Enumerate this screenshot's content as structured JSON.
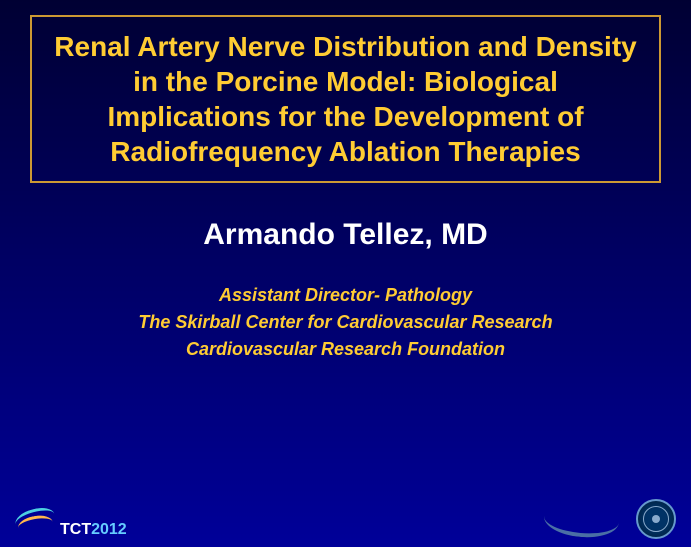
{
  "slide": {
    "title": "Renal Artery Nerve Distribution and Density in the Porcine Model: Biological Implications for the Development of Radiofrequency Ablation Therapies",
    "presenter": "Armando Tellez, MD",
    "affiliations": [
      "Assistant Director- Pathology",
      "The Skirball Center for Cardiovascular Research",
      "Cardiovascular Research Foundation"
    ],
    "conference": {
      "name": "TCT",
      "year": "2012"
    },
    "colors": {
      "title_text": "#ffcc33",
      "title_border": "#cc9933",
      "presenter_text": "#ffffff",
      "affiliation_text": "#ffcc33",
      "background_gradient_start": "#000033",
      "background_gradient_end": "#000099",
      "conference_name_color": "#ffffff",
      "conference_year_color": "#66ccff"
    },
    "typography": {
      "title_fontsize": 28,
      "title_weight": "bold",
      "presenter_fontsize": 30,
      "presenter_weight": "bold",
      "affiliation_fontsize": 18,
      "affiliation_style": "italic",
      "affiliation_weight": "bold"
    }
  }
}
